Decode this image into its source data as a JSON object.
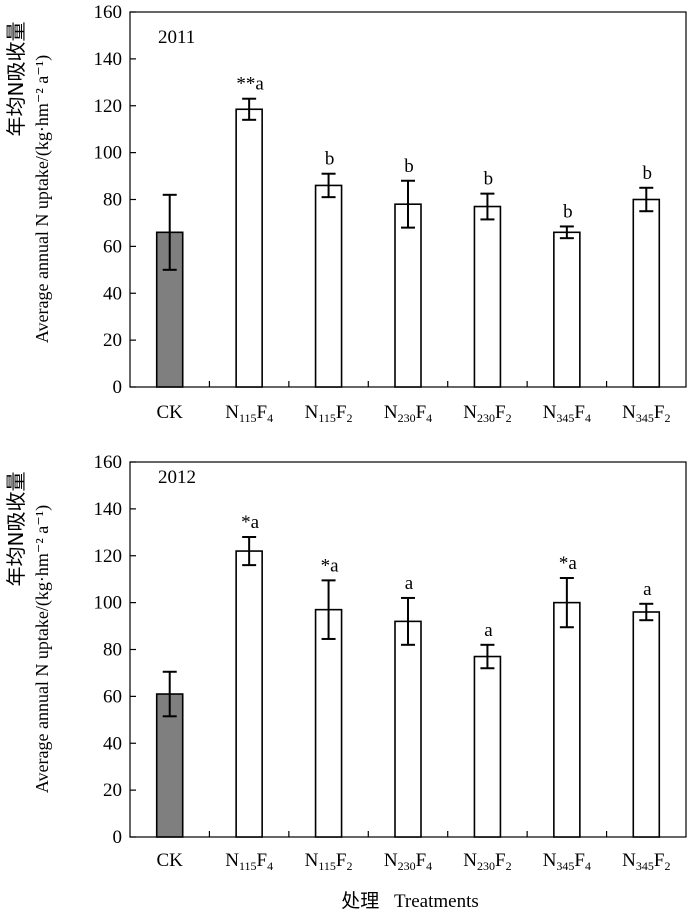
{
  "chart_data": [
    {
      "type": "bar",
      "title": "2011",
      "categories": [
        {
          "main": "CK",
          "parts": [
            {
              "t": "CK",
              "sub": false
            }
          ]
        },
        {
          "main": "N115F4",
          "parts": [
            {
              "t": "N",
              "sub": false
            },
            {
              "t": "115",
              "sub": true
            },
            {
              "t": "F",
              "sub": false
            },
            {
              "t": "4",
              "sub": true
            }
          ]
        },
        {
          "main": "N115F2",
          "parts": [
            {
              "t": "N",
              "sub": false
            },
            {
              "t": "115",
              "sub": true
            },
            {
              "t": "F",
              "sub": false
            },
            {
              "t": "2",
              "sub": true
            }
          ]
        },
        {
          "main": "N230F4",
          "parts": [
            {
              "t": "N",
              "sub": false
            },
            {
              "t": "230",
              "sub": true
            },
            {
              "t": "F",
              "sub": false
            },
            {
              "t": "4",
              "sub": true
            }
          ]
        },
        {
          "main": "N230F2",
          "parts": [
            {
              "t": "N",
              "sub": false
            },
            {
              "t": "230",
              "sub": true
            },
            {
              "t": "F",
              "sub": false
            },
            {
              "t": "2",
              "sub": true
            }
          ]
        },
        {
          "main": "N345F4",
          "parts": [
            {
              "t": "N",
              "sub": false
            },
            {
              "t": "345",
              "sub": true
            },
            {
              "t": "F",
              "sub": false
            },
            {
              "t": "4",
              "sub": true
            }
          ]
        },
        {
          "main": "N345F2",
          "parts": [
            {
              "t": "N",
              "sub": false
            },
            {
              "t": "345",
              "sub": true
            },
            {
              "t": "F",
              "sub": false
            },
            {
              "t": "2",
              "sub": true
            }
          ]
        }
      ],
      "values": [
        66,
        118.5,
        86,
        78,
        77,
        66,
        80
      ],
      "errors": [
        16,
        4.5,
        5,
        10,
        5.5,
        2.5,
        5
      ],
      "significance": [
        "",
        "**a",
        "b",
        "b",
        "b",
        "b",
        "b"
      ],
      "fills": [
        "#7f7f7f",
        "#ffffff",
        "#ffffff",
        "#ffffff",
        "#ffffff",
        "#ffffff",
        "#ffffff"
      ],
      "ylim": [
        0,
        160
      ],
      "yticks": [
        0,
        20,
        40,
        60,
        80,
        100,
        120,
        140,
        160
      ],
      "ylabel_cn": "年均N吸收量",
      "ylabel_en": "Average annual N uptake/(kg·hm⁻² a⁻¹)"
    },
    {
      "type": "bar",
      "title": "2012",
      "categories": [
        {
          "main": "CK",
          "parts": [
            {
              "t": "CK",
              "sub": false
            }
          ]
        },
        {
          "main": "N115F4",
          "parts": [
            {
              "t": "N",
              "sub": false
            },
            {
              "t": "115",
              "sub": true
            },
            {
              "t": "F",
              "sub": false
            },
            {
              "t": "4",
              "sub": true
            }
          ]
        },
        {
          "main": "N115F2",
          "parts": [
            {
              "t": "N",
              "sub": false
            },
            {
              "t": "115",
              "sub": true
            },
            {
              "t": "F",
              "sub": false
            },
            {
              "t": "2",
              "sub": true
            }
          ]
        },
        {
          "main": "N230F4",
          "parts": [
            {
              "t": "N",
              "sub": false
            },
            {
              "t": "230",
              "sub": true
            },
            {
              "t": "F",
              "sub": false
            },
            {
              "t": "4",
              "sub": true
            }
          ]
        },
        {
          "main": "N230F2",
          "parts": [
            {
              "t": "N",
              "sub": false
            },
            {
              "t": "230",
              "sub": true
            },
            {
              "t": "F",
              "sub": false
            },
            {
              "t": "2",
              "sub": true
            }
          ]
        },
        {
          "main": "N345F4",
          "parts": [
            {
              "t": "N",
              "sub": false
            },
            {
              "t": "345",
              "sub": true
            },
            {
              "t": "F",
              "sub": false
            },
            {
              "t": "4",
              "sub": true
            }
          ]
        },
        {
          "main": "N345F2",
          "parts": [
            {
              "t": "N",
              "sub": false
            },
            {
              "t": "345",
              "sub": true
            },
            {
              "t": "F",
              "sub": false
            },
            {
              "t": "2",
              "sub": true
            }
          ]
        }
      ],
      "values": [
        61,
        122,
        97,
        92,
        77,
        100,
        96
      ],
      "errors": [
        9.5,
        6,
        12.5,
        10,
        5,
        10.5,
        3.5
      ],
      "significance": [
        "",
        "*a",
        "*a",
        "a",
        "a",
        "*a",
        "a"
      ],
      "fills": [
        "#7f7f7f",
        "#ffffff",
        "#ffffff",
        "#ffffff",
        "#ffffff",
        "#ffffff",
        "#ffffff"
      ],
      "ylim": [
        0,
        160
      ],
      "yticks": [
        0,
        20,
        40,
        60,
        80,
        100,
        120,
        140,
        160
      ],
      "ylabel_cn": "年均N吸收量",
      "ylabel_en": "Average annual N uptake/(kg·hm⁻² a⁻¹)"
    }
  ],
  "xlabel": {
    "cn": "处理",
    "en": "Treatments"
  }
}
